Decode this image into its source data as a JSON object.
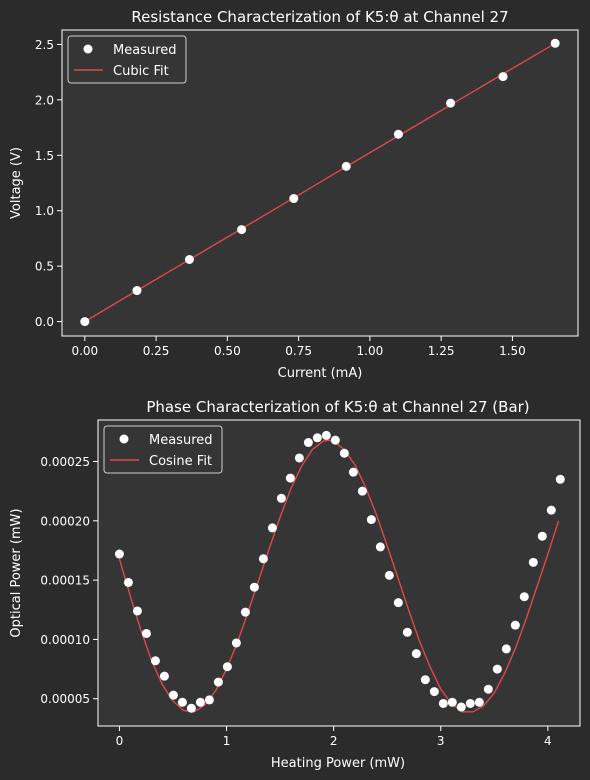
{
  "colors": {
    "figure_bg": "#2b2b2b",
    "axes_bg": "#353535",
    "spine": "#ffffff",
    "text": "#ffffff",
    "marker": "#ffffff",
    "fit_line": "#e0474c"
  },
  "chart_data": [
    {
      "type": "scatter",
      "title": "Resistance Characterization of K5:θ at Channel 27",
      "xlabel": "Current (mA)",
      "ylabel": "Voltage (V)",
      "xlim": [
        -0.08,
        1.73
      ],
      "ylim": [
        -0.13,
        2.63
      ],
      "xticks": [
        0.0,
        0.25,
        0.5,
        0.75,
        1.0,
        1.25,
        1.5
      ],
      "xtick_labels": [
        "0.00",
        "0.25",
        "0.50",
        "0.75",
        "1.00",
        "1.25",
        "1.50"
      ],
      "yticks": [
        0.0,
        0.5,
        1.0,
        1.5,
        2.0,
        2.5
      ],
      "ytick_labels": [
        "0.0",
        "0.5",
        "1.0",
        "1.5",
        "2.0",
        "2.5"
      ],
      "legend": {
        "placement": "top-left",
        "entries": [
          "Measured",
          "Cubic Fit"
        ]
      },
      "grid": false,
      "series": [
        {
          "name": "Measured",
          "kind": "markers",
          "x": [
            0.0,
            0.183,
            0.367,
            0.55,
            0.733,
            0.917,
            1.1,
            1.283,
            1.467,
            1.65
          ],
          "y": [
            0.0,
            0.28,
            0.56,
            0.83,
            1.11,
            1.4,
            1.69,
            1.97,
            2.21,
            2.51
          ]
        },
        {
          "name": "Cubic Fit",
          "kind": "line",
          "x": [
            0.0,
            0.165,
            0.33,
            0.495,
            0.66,
            0.825,
            0.99,
            1.155,
            1.32,
            1.485,
            1.65
          ],
          "y": [
            0.0,
            0.252,
            0.503,
            0.754,
            1.005,
            1.256,
            1.508,
            1.759,
            2.01,
            2.261,
            2.51
          ]
        }
      ]
    },
    {
      "type": "scatter",
      "title": "Phase Characterization of K5:θ at Channel 27 (Bar)",
      "xlabel": "Heating Power (mW)",
      "ylabel": "Optical Power (mW)",
      "xlim": [
        -0.2,
        4.3
      ],
      "ylim": [
        2.7e-05,
        0.000285
      ],
      "xticks": [
        0,
        1,
        2,
        3,
        4
      ],
      "xtick_labels": [
        "0",
        "1",
        "2",
        "3",
        "4"
      ],
      "yticks": [
        5e-05,
        0.0001,
        0.00015,
        0.0002,
        0.00025
      ],
      "ytick_labels": [
        "0.00005",
        "0.00010",
        "0.00015",
        "0.00020",
        "0.00025"
      ],
      "legend": {
        "placement": "top-left",
        "entries": [
          "Measured",
          "Cosine Fit"
        ]
      },
      "grid": false,
      "series": [
        {
          "name": "Measured",
          "kind": "markers",
          "x": [
            0.0,
            0.084,
            0.168,
            0.252,
            0.336,
            0.42,
            0.504,
            0.588,
            0.672,
            0.756,
            0.84,
            0.924,
            1.008,
            1.092,
            1.176,
            1.26,
            1.344,
            1.428,
            1.512,
            1.596,
            1.68,
            1.764,
            1.848,
            1.932,
            2.016,
            2.1,
            2.184,
            2.268,
            2.352,
            2.436,
            2.52,
            2.604,
            2.688,
            2.772,
            2.856,
            2.94,
            3.024,
            3.108,
            3.192,
            3.276,
            3.36,
            3.444,
            3.528,
            3.612,
            3.696,
            3.78,
            3.864,
            3.948,
            4.032,
            4.116
          ],
          "y": [
            0.000172,
            0.000148,
            0.000124,
            0.000105,
            8.2e-05,
            6.9e-05,
            5.3e-05,
            4.7e-05,
            4.2e-05,
            4.7e-05,
            4.9e-05,
            6.4e-05,
            7.7e-05,
            9.7e-05,
            0.000123,
            0.000144,
            0.000168,
            0.000194,
            0.000219,
            0.000236,
            0.000253,
            0.000266,
            0.00027,
            0.000272,
            0.000268,
            0.000257,
            0.000241,
            0.000225,
            0.000201,
            0.000178,
            0.000154,
            0.000131,
            0.000106,
            8.8e-05,
            6.6e-05,
            5.6e-05,
            4.6e-05,
            4.7e-05,
            4.3e-05,
            4.6e-05,
            4.7e-05,
            5.8e-05,
            7.5e-05,
            9.2e-05,
            0.000112,
            0.000136,
            0.000165,
            0.000187,
            0.000209,
            0.000235
          ]
        },
        {
          "name": "Cosine Fit",
          "kind": "line",
          "x": [
            0.0,
            0.1,
            0.2,
            0.3,
            0.4,
            0.5,
            0.6,
            0.7,
            0.8,
            0.9,
            1.0,
            1.1,
            1.2,
            1.3,
            1.4,
            1.5,
            1.6,
            1.7,
            1.8,
            1.9,
            1.95,
            2.0,
            2.1,
            2.2,
            2.3,
            2.4,
            2.5,
            2.6,
            2.7,
            2.8,
            2.9,
            3.0,
            3.1,
            3.2,
            3.3,
            3.4,
            3.5,
            3.6,
            3.7,
            3.8,
            3.9,
            4.0,
            4.1
          ],
          "y": [
            0.000168,
            0.000137,
            0.000108,
            8.2e-05,
            6.2e-05,
            4.8e-05,
            4e-05,
            3.9e-05,
            4.5e-05,
            5.7e-05,
            7.5e-05,
            9.7e-05,
            0.000123,
            0.00015,
            0.000177,
            0.000203,
            0.000227,
            0.000246,
            0.00026,
            0.000267,
            0.000268,
            0.000267,
            0.00026,
            0.000247,
            0.000228,
            0.000205,
            0.000179,
            0.000152,
            0.000125,
            9.9e-05,
            7.7e-05,
            5.8e-05,
            4.6e-05,
            3.9e-05,
            3.9e-05,
            4.4e-05,
            5.5e-05,
            7.2e-05,
            9.3e-05,
            0.000118,
            0.000145,
            0.000172,
            0.0002
          ]
        }
      ]
    }
  ]
}
